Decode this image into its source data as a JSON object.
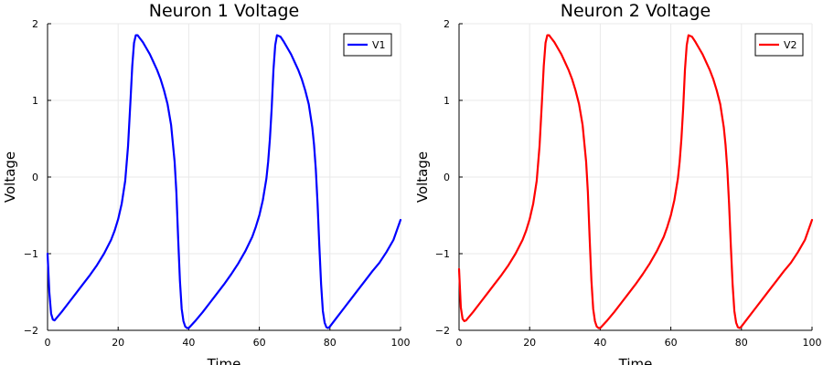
{
  "chart_data": [
    {
      "type": "line",
      "title": "Neuron 1 Voltage",
      "xlabel": "Time",
      "ylabel": "Voltage",
      "xlim": [
        0,
        100
      ],
      "ylim": [
        -2,
        2
      ],
      "xticks": [
        0,
        20,
        40,
        60,
        80,
        100
      ],
      "yticks": [
        -2,
        -1,
        0,
        1,
        2
      ],
      "grid": true,
      "legend_position": "top-right",
      "series": [
        {
          "name": "V1",
          "color": "#0000ff",
          "x": [
            0,
            0.5,
            1,
            1.5,
            2,
            4,
            6,
            8,
            10,
            12,
            14,
            16,
            18,
            19,
            20,
            21,
            22,
            22.8,
            23.5,
            24,
            24.5,
            25,
            25.5,
            26,
            27,
            28,
            29,
            30,
            31,
            32,
            33,
            34,
            35,
            36,
            36.5,
            37,
            37.5,
            38,
            38.5,
            39,
            39.5,
            40,
            42,
            44,
            46,
            48,
            50,
            52,
            54,
            56,
            58,
            59,
            60,
            61,
            62,
            62.5,
            63,
            63.5,
            64,
            64.5,
            65,
            66,
            67,
            68,
            69,
            70,
            71,
            72,
            73,
            74,
            75,
            75.5,
            76,
            76.5,
            77,
            77.5,
            78,
            78.5,
            79,
            79.5,
            80,
            82,
            84,
            86,
            88,
            90,
            92,
            94,
            96,
            98,
            100
          ],
          "y": [
            -1.0,
            -1.5,
            -1.78,
            -1.86,
            -1.87,
            -1.76,
            -1.64,
            -1.52,
            -1.4,
            -1.28,
            -1.15,
            -1.0,
            -0.82,
            -0.7,
            -0.55,
            -0.35,
            -0.05,
            0.4,
            1.0,
            1.45,
            1.75,
            1.85,
            1.85,
            1.82,
            1.76,
            1.68,
            1.6,
            1.5,
            1.4,
            1.28,
            1.13,
            0.95,
            0.68,
            0.2,
            -0.2,
            -0.8,
            -1.35,
            -1.72,
            -1.88,
            -1.95,
            -1.97,
            -1.97,
            -1.87,
            -1.76,
            -1.64,
            -1.52,
            -1.4,
            -1.27,
            -1.13,
            -0.97,
            -0.78,
            -0.65,
            -0.5,
            -0.3,
            -0.02,
            0.2,
            0.5,
            0.9,
            1.4,
            1.72,
            1.85,
            1.83,
            1.76,
            1.68,
            1.6,
            1.5,
            1.4,
            1.28,
            1.13,
            0.95,
            0.65,
            0.42,
            0.1,
            -0.35,
            -0.9,
            -1.4,
            -1.75,
            -1.9,
            -1.96,
            -1.97,
            -1.95,
            -1.83,
            -1.71,
            -1.59,
            -1.47,
            -1.35,
            -1.23,
            -1.12,
            -0.98,
            -0.82,
            -0.56
          ]
        }
      ]
    },
    {
      "type": "line",
      "title": "Neuron 2 Voltage",
      "xlabel": "Time",
      "ylabel": "Voltage",
      "xlim": [
        0,
        100
      ],
      "ylim": [
        -2,
        2
      ],
      "xticks": [
        0,
        20,
        40,
        60,
        80,
        100
      ],
      "yticks": [
        -2,
        -1,
        0,
        1,
        2
      ],
      "grid": true,
      "legend_position": "top-right",
      "series": [
        {
          "name": "V2",
          "color": "#ff0000",
          "x": [
            0,
            0.5,
            1,
            1.5,
            2,
            4,
            6,
            8,
            10,
            12,
            14,
            16,
            18,
            19,
            20,
            21,
            22,
            22.8,
            23.5,
            24,
            24.5,
            25,
            25.5,
            26,
            27,
            28,
            29,
            30,
            31,
            32,
            33,
            34,
            35,
            36,
            36.5,
            37,
            37.5,
            38,
            38.5,
            39,
            39.5,
            40,
            42,
            44,
            46,
            48,
            50,
            52,
            54,
            56,
            58,
            59,
            60,
            61,
            62,
            62.5,
            63,
            63.5,
            64,
            64.5,
            65,
            66,
            67,
            68,
            69,
            70,
            71,
            72,
            73,
            74,
            75,
            75.5,
            76,
            76.5,
            77,
            77.5,
            78,
            78.5,
            79,
            79.5,
            80,
            82,
            84,
            86,
            88,
            90,
            92,
            94,
            96,
            98,
            100
          ],
          "y": [
            -1.2,
            -1.7,
            -1.85,
            -1.88,
            -1.87,
            -1.76,
            -1.64,
            -1.52,
            -1.4,
            -1.28,
            -1.15,
            -1.0,
            -0.82,
            -0.7,
            -0.55,
            -0.35,
            -0.05,
            0.4,
            1.0,
            1.45,
            1.75,
            1.85,
            1.85,
            1.82,
            1.76,
            1.68,
            1.6,
            1.5,
            1.4,
            1.28,
            1.13,
            0.95,
            0.68,
            0.2,
            -0.2,
            -0.8,
            -1.35,
            -1.72,
            -1.88,
            -1.95,
            -1.97,
            -1.97,
            -1.87,
            -1.76,
            -1.64,
            -1.52,
            -1.4,
            -1.27,
            -1.13,
            -0.97,
            -0.78,
            -0.65,
            -0.5,
            -0.3,
            -0.02,
            0.2,
            0.5,
            0.9,
            1.4,
            1.72,
            1.85,
            1.83,
            1.76,
            1.68,
            1.6,
            1.5,
            1.4,
            1.28,
            1.13,
            0.95,
            0.65,
            0.42,
            0.1,
            -0.35,
            -0.9,
            -1.4,
            -1.75,
            -1.9,
            -1.96,
            -1.97,
            -1.95,
            -1.83,
            -1.71,
            -1.59,
            -1.47,
            -1.35,
            -1.23,
            -1.12,
            -0.98,
            -0.82,
            -0.56
          ]
        }
      ]
    }
  ]
}
